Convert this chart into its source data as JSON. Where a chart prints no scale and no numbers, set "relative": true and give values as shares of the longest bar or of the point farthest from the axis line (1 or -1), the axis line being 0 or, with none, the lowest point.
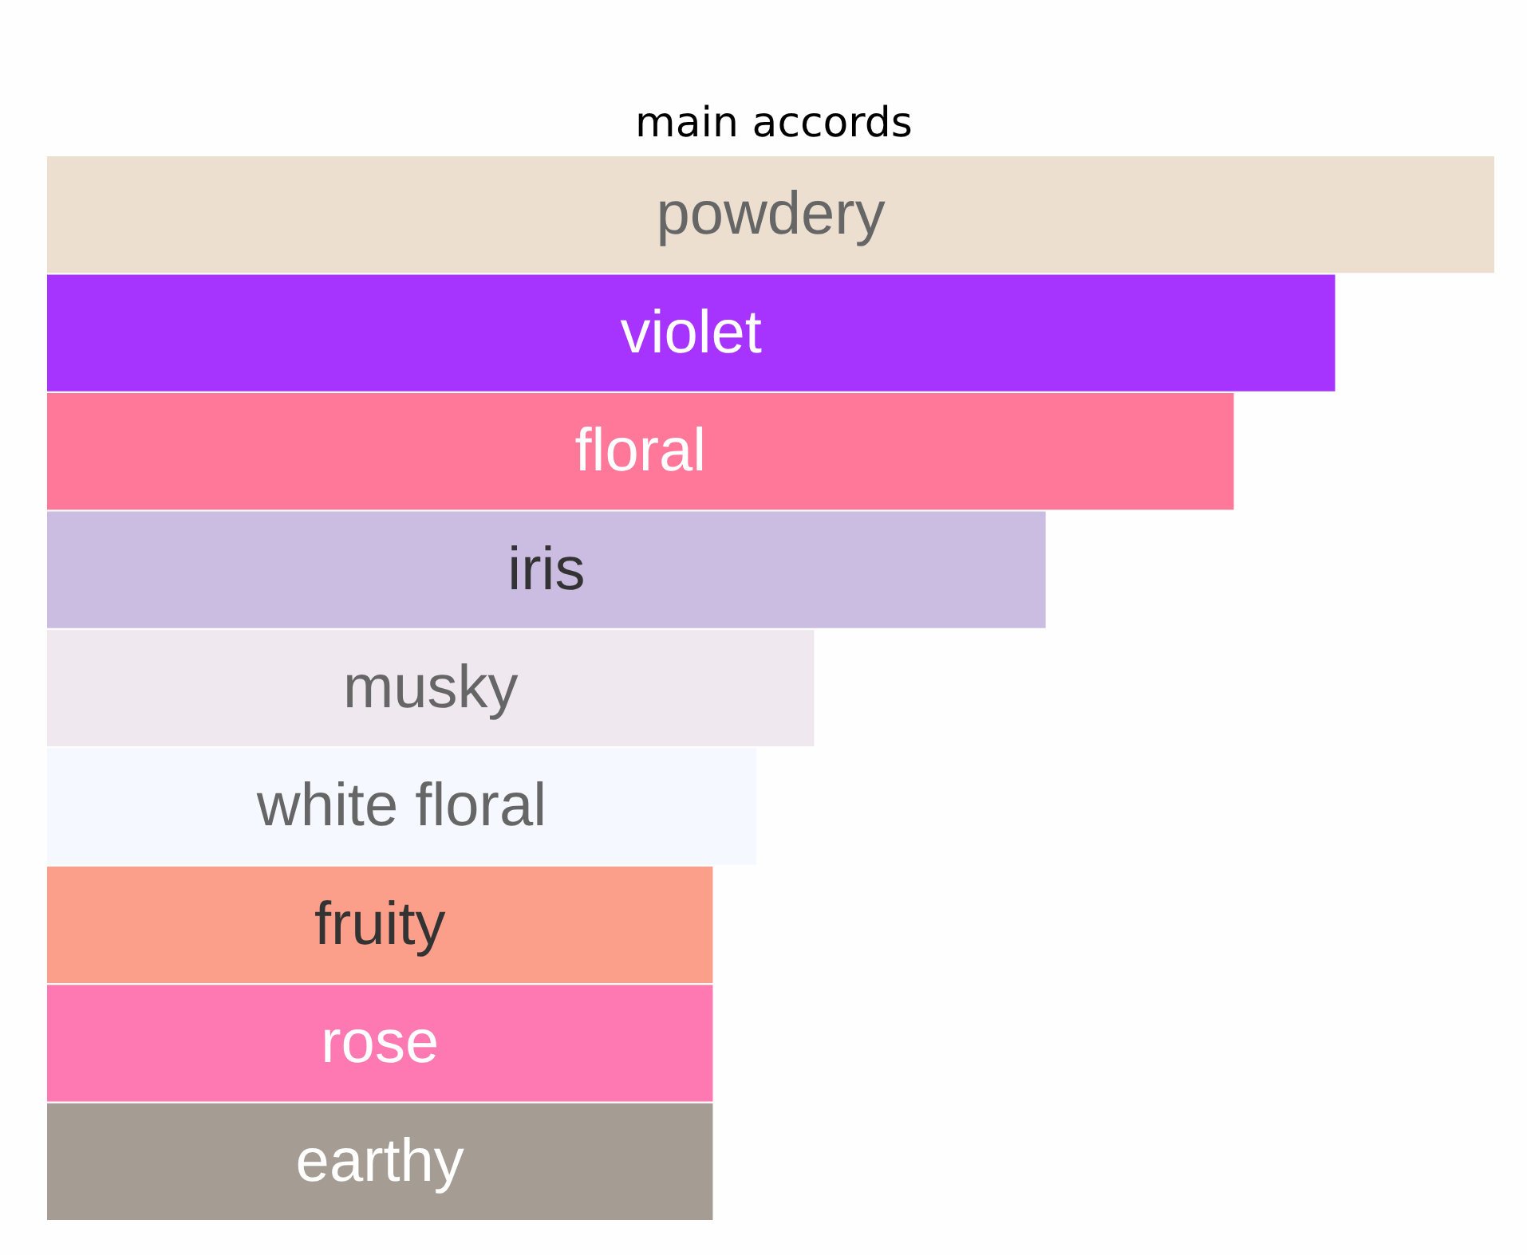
{
  "chart_data": {
    "type": "bar",
    "title": "main accords",
    "orientation": "horizontal",
    "relative": true,
    "categories": [
      "powdery",
      "violet",
      "floral",
      "iris",
      "musky",
      "white floral",
      "fruity",
      "rose",
      "earthy"
    ],
    "values": [
      1,
      0.89,
      0.82,
      0.69,
      0.53,
      0.49,
      0.46,
      0.46,
      0.46
    ],
    "colors": [
      "#ecdfd0",
      "#a733ff",
      "#ff7799",
      "#cbbde2",
      "#f0e8ef",
      "#f5f8fe",
      "#fc9f8a",
      "#fe78b1",
      "#a59d94"
    ],
    "grid": false
  }
}
